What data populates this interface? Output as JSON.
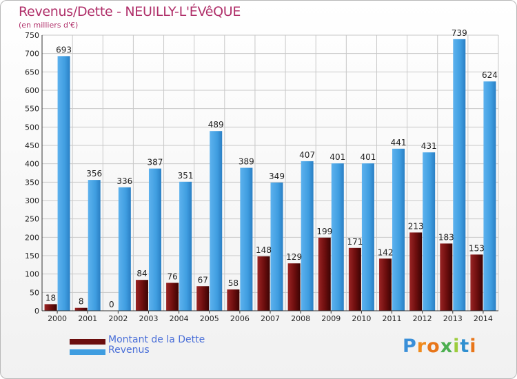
{
  "title": "Revenus/Dette - NEUILLY-L'ÉVêQUE",
  "subtitle": "(en milliers d'€)",
  "brand": "Proxiti",
  "colors": {
    "dette": "#6b0d0d",
    "revenus": "#3f9de0",
    "grid": "#c8c8c8",
    "title": "#b0306a",
    "legend_text": "#4a6fd8"
  },
  "legend": [
    {
      "label": "Montant de la Dette",
      "series": "dette"
    },
    {
      "label": "Revenus",
      "series": "revenus"
    }
  ],
  "chart_data": {
    "type": "bar",
    "title": "Revenus/Dette - NEUILLY-L'ÉVêQUE",
    "ylabel": "(en milliers d'€)",
    "xlabel": "",
    "categories": [
      "2000",
      "2001",
      "2002",
      "2003",
      "2004",
      "2005",
      "2006",
      "2007",
      "2008",
      "2009",
      "2010",
      "2011",
      "2012",
      "2013",
      "2014"
    ],
    "series": [
      {
        "name": "Montant de la Dette",
        "key": "dette",
        "values": [
          18,
          8,
          0,
          84,
          76,
          67,
          58,
          148,
          129,
          199,
          171,
          142,
          213,
          183,
          153
        ]
      },
      {
        "name": "Revenus",
        "key": "revenus",
        "values": [
          693,
          356,
          336,
          387,
          351,
          489,
          389,
          349,
          407,
          401,
          401,
          441,
          431,
          739,
          624
        ]
      }
    ],
    "ylim": [
      0,
      750
    ],
    "yticks": [
      0,
      50,
      100,
      150,
      200,
      250,
      300,
      350,
      400,
      450,
      500,
      550,
      600,
      650,
      700,
      750
    ],
    "grid": true
  }
}
